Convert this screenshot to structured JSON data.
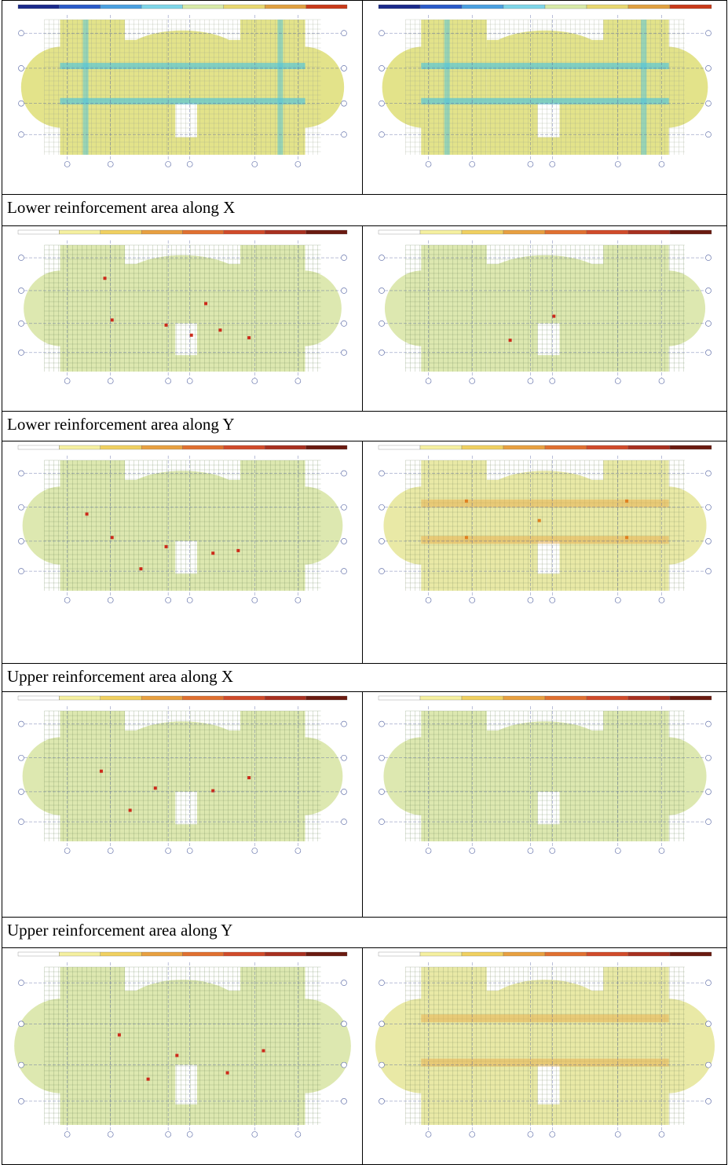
{
  "captions": [
    "Lower reinforcement area along X",
    "Lower reinforcement area along Y",
    "Upper reinforcement area along X",
    "Upper reinforcement area along Y"
  ],
  "plans": [
    {
      "id": "r0l",
      "theme": "blue",
      "spots": []
    },
    {
      "id": "r0r",
      "theme": "blue",
      "spots": []
    },
    {
      "id": "r1l",
      "theme": "green",
      "spots": [
        [
          0.3,
          0.58
        ],
        [
          0.45,
          0.62
        ],
        [
          0.52,
          0.7
        ],
        [
          0.6,
          0.66
        ],
        [
          0.68,
          0.72
        ],
        [
          0.28,
          0.25
        ],
        [
          0.56,
          0.45
        ]
      ]
    },
    {
      "id": "r1r",
      "theme": "green",
      "spots": [
        [
          0.52,
          0.55
        ],
        [
          0.4,
          0.74
        ]
      ]
    },
    {
      "id": "r2l",
      "theme": "green",
      "spots": [
        [
          0.23,
          0.4
        ],
        [
          0.3,
          0.58
        ],
        [
          0.45,
          0.65
        ],
        [
          0.58,
          0.7
        ],
        [
          0.65,
          0.68
        ],
        [
          0.38,
          0.82
        ]
      ]
    },
    {
      "id": "r2r",
      "theme": "warm",
      "spots": [
        [
          0.28,
          0.3
        ],
        [
          0.72,
          0.3
        ],
        [
          0.28,
          0.58
        ],
        [
          0.72,
          0.58
        ],
        [
          0.48,
          0.45
        ]
      ]
    },
    {
      "id": "r3l",
      "theme": "green",
      "spots": [
        [
          0.27,
          0.45
        ],
        [
          0.42,
          0.58
        ],
        [
          0.58,
          0.6
        ],
        [
          0.68,
          0.5
        ],
        [
          0.35,
          0.75
        ]
      ]
    },
    {
      "id": "r3r",
      "theme": "green",
      "spots": []
    },
    {
      "id": "r4l",
      "theme": "green",
      "spots": [
        [
          0.32,
          0.42
        ],
        [
          0.48,
          0.55
        ],
        [
          0.62,
          0.66
        ],
        [
          0.72,
          0.52
        ],
        [
          0.4,
          0.7
        ]
      ]
    },
    {
      "id": "r4r",
      "theme": "warm",
      "spots": []
    }
  ]
}
